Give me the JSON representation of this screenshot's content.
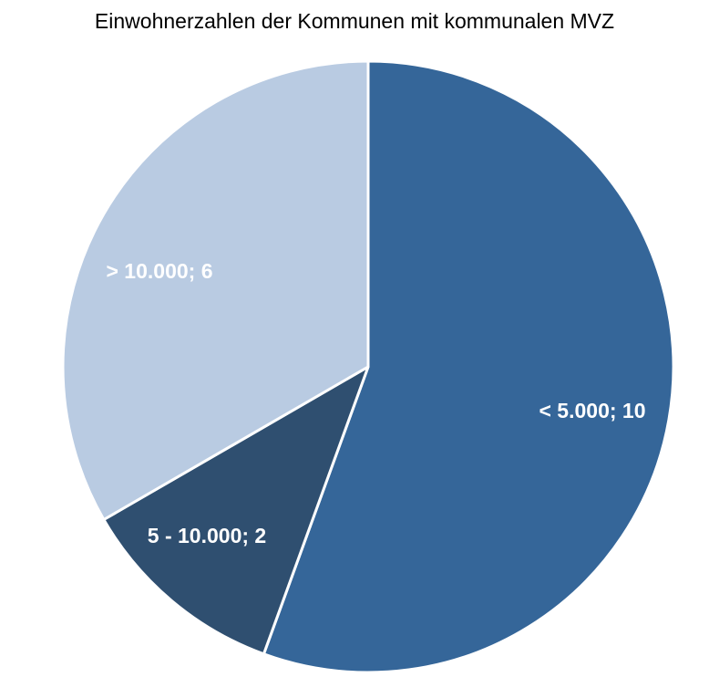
{
  "chart_data": {
    "type": "pie",
    "title": "Einwohnerzahlen der Kommunen mit kommunalen MVZ",
    "categories": [
      "< 5.000",
      "5 - 10.000",
      "> 10.000"
    ],
    "values": [
      10,
      2,
      6
    ],
    "data_labels": [
      "< 5.000; 10",
      "5 - 10.000; 2",
      "> 10.000; 6"
    ],
    "colors": [
      "#356699",
      "#2f4f70",
      "#b9cbe2"
    ],
    "start_angle": "12 o'clock",
    "direction": "clockwise",
    "legend": "none",
    "slice_border_color": "#ffffff"
  }
}
